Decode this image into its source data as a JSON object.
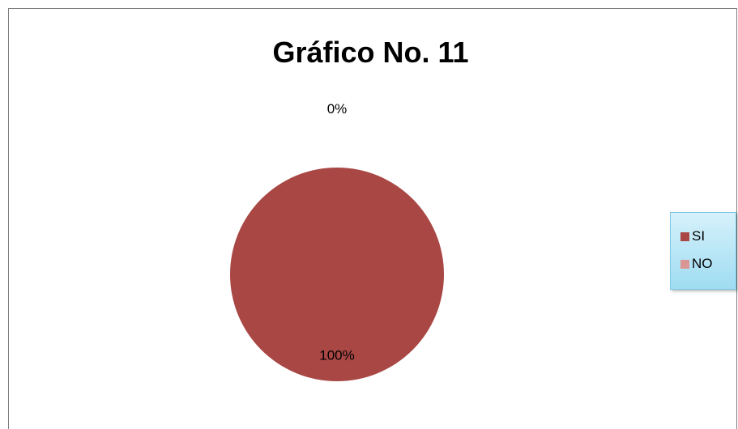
{
  "chart_data": {
    "type": "pie",
    "title": "Gráfico No. 11",
    "categories": [
      "SI",
      "NO"
    ],
    "values": [
      100,
      0
    ],
    "data_labels": [
      "100%",
      "0%"
    ],
    "colors": [
      "#a84744",
      "#d99694"
    ],
    "legend_position": "right"
  }
}
